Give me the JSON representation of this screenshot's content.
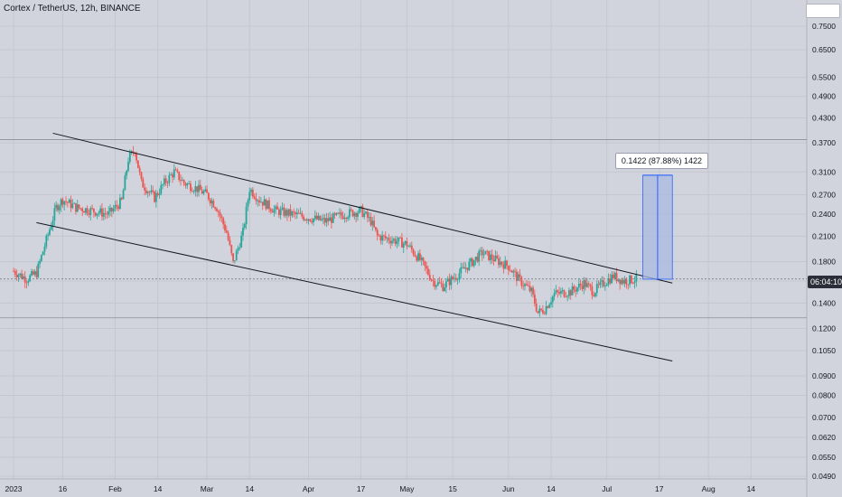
{
  "header": {
    "title": "Cortex / TetherUS, 12h, BINANCE"
  },
  "measure": {
    "label": "0.1422 (87.88%) 1422"
  },
  "last_price_tag": "06:04:10",
  "colors": {
    "up": "#26a69a",
    "down": "#ef5350",
    "background": "#d1d4dc",
    "trendline": "#131722",
    "measure_fill": "#aab9e0",
    "measure_line": "#2962ff"
  },
  "chart_data": {
    "type": "candlestick",
    "title": "Cortex / TetherUS, 12h, BINANCE",
    "xlabel": "",
    "ylabel": "",
    "x_ticks": [
      "2023",
      "16",
      "Feb",
      "14",
      "Mar",
      "14",
      "Apr",
      "17",
      "May",
      "15",
      "Jun",
      "14",
      "Jul",
      "17",
      "Aug",
      "14"
    ],
    "x_tick_dates": [
      "2023-01-01",
      "2023-01-16",
      "2023-02-01",
      "2023-02-14",
      "2023-03-01",
      "2023-03-14",
      "2023-04-01",
      "2023-04-17",
      "2023-05-01",
      "2023-05-15",
      "2023-06-01",
      "2023-06-14",
      "2023-07-01",
      "2023-07-17",
      "2023-08-01",
      "2023-08-14"
    ],
    "y_scale": "log",
    "y_ticks": [
      "0.7500",
      "0.6500",
      "0.5500",
      "0.4900",
      "0.4300",
      "0.3700",
      "0.3100",
      "0.2700",
      "0.2400",
      "0.2100",
      "0.1800",
      "0.1600",
      "0.1400",
      "0.1200",
      "0.1050",
      "0.0900",
      "0.0800",
      "0.0700",
      "0.0620",
      "0.0550",
      "0.0490"
    ],
    "y_range": [
      0.048,
      0.86
    ],
    "horizontal_levels": [
      0.377,
      0.128
    ],
    "last_price": 0.162,
    "price_path": [
      [
        "2023-01-01",
        0.17
      ],
      [
        "2023-01-05",
        0.162
      ],
      [
        "2023-01-08",
        0.168
      ],
      [
        "2023-01-11",
        0.205
      ],
      [
        "2023-01-14",
        0.25
      ],
      [
        "2023-01-16",
        0.262
      ],
      [
        "2023-01-20",
        0.25
      ],
      [
        "2023-01-25",
        0.245
      ],
      [
        "2023-01-30",
        0.24
      ],
      [
        "2023-02-03",
        0.26
      ],
      [
        "2023-02-05",
        0.335
      ],
      [
        "2023-02-07",
        0.355
      ],
      [
        "2023-02-09",
        0.29
      ],
      [
        "2023-02-13",
        0.265
      ],
      [
        "2023-02-16",
        0.29
      ],
      [
        "2023-02-19",
        0.31
      ],
      [
        "2023-02-22",
        0.29
      ],
      [
        "2023-02-26",
        0.28
      ],
      [
        "2023-03-01",
        0.27
      ],
      [
        "2023-03-04",
        0.25
      ],
      [
        "2023-03-07",
        0.215
      ],
      [
        "2023-03-09",
        0.178
      ],
      [
        "2023-03-12",
        0.215
      ],
      [
        "2023-03-14",
        0.28
      ],
      [
        "2023-03-17",
        0.262
      ],
      [
        "2023-03-22",
        0.245
      ],
      [
        "2023-03-27",
        0.24
      ],
      [
        "2023-04-01",
        0.235
      ],
      [
        "2023-04-06",
        0.23
      ],
      [
        "2023-04-12",
        0.24
      ],
      [
        "2023-04-17",
        0.245
      ],
      [
        "2023-04-20",
        0.23
      ],
      [
        "2023-04-22",
        0.21
      ],
      [
        "2023-04-27",
        0.205
      ],
      [
        "2023-05-01",
        0.2
      ],
      [
        "2023-05-05",
        0.182
      ],
      [
        "2023-05-09",
        0.16
      ],
      [
        "2023-05-12",
        0.155
      ],
      [
        "2023-05-16",
        0.165
      ],
      [
        "2023-05-21",
        0.18
      ],
      [
        "2023-05-24",
        0.19
      ],
      [
        "2023-05-28",
        0.182
      ],
      [
        "2023-06-01",
        0.175
      ],
      [
        "2023-06-04",
        0.162
      ],
      [
        "2023-06-08",
        0.15
      ],
      [
        "2023-06-10",
        0.132
      ],
      [
        "2023-06-12",
        0.135
      ],
      [
        "2023-06-15",
        0.148
      ],
      [
        "2023-06-20",
        0.15
      ],
      [
        "2023-06-24",
        0.158
      ],
      [
        "2023-06-27",
        0.15
      ],
      [
        "2023-06-30",
        0.158
      ],
      [
        "2023-07-03",
        0.165
      ],
      [
        "2023-07-06",
        0.16
      ],
      [
        "2023-07-10",
        0.162
      ]
    ],
    "trendlines": [
      {
        "from": [
          "2023-01-13",
          0.392
        ],
        "to": [
          "2023-07-21",
          0.158
        ]
      },
      {
        "from": [
          "2023-01-08",
          0.228
        ],
        "to": [
          "2023-07-21",
          0.0985
        ]
      }
    ],
    "measure_range": {
      "from_date": "2023-07-12",
      "to_date": "2023-07-21",
      "low": 0.1618,
      "high": 0.304,
      "change": 0.1422,
      "percent": 87.88
    }
  }
}
